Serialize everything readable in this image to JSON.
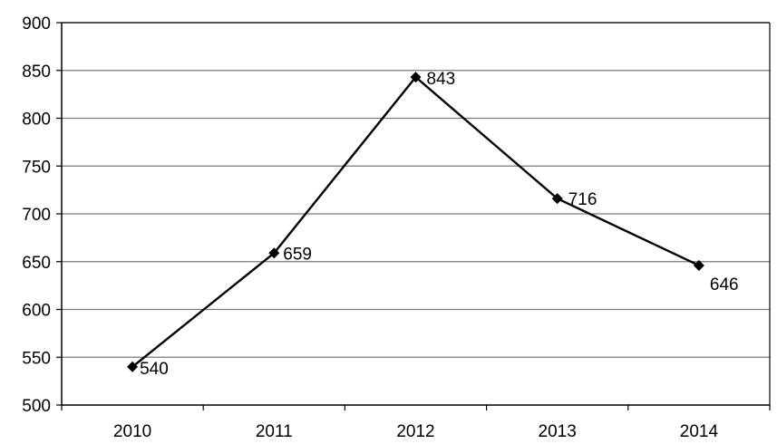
{
  "chart_data": {
    "type": "line",
    "categories": [
      "2010",
      "2011",
      "2012",
      "2013",
      "2014"
    ],
    "series": [
      {
        "values": [
          540,
          659,
          843,
          716,
          646
        ]
      }
    ],
    "data_labels": [
      "540",
      "659",
      "843",
      "716",
      "646"
    ],
    "y_ticks": [
      "500",
      "550",
      "600",
      "650",
      "700",
      "750",
      "800",
      "850",
      "900"
    ],
    "ylim": [
      500,
      900
    ],
    "grid": true,
    "legend": "none",
    "line_color": "#000000",
    "marker": "diamond",
    "title": "",
    "xlabel": "",
    "ylabel": ""
  }
}
